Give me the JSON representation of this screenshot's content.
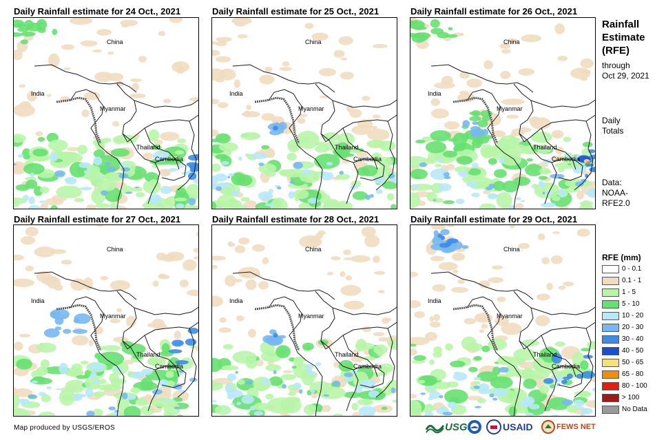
{
  "panels": [
    {
      "title": "Daily Rainfall estimate for 24 Oct., 2021",
      "rain": "heavy-south"
    },
    {
      "title": "Daily Rainfall estimate for 25 Oct., 2021",
      "rain": "moderate"
    },
    {
      "title": "Daily Rainfall estimate for 26 Oct., 2021",
      "rain": "east-heavy"
    },
    {
      "title": "Daily Rainfall estimate for 27 Oct., 2021",
      "rain": "west-heavy"
    },
    {
      "title": "Daily Rainfall estimate for 28 Oct., 2021",
      "rain": "moderate"
    },
    {
      "title": "Daily Rainfall estimate for 29 Oct., 2021",
      "rain": "north-west"
    }
  ],
  "place_labels": {
    "china": "China",
    "india": "India",
    "myanmar": "Myanmar",
    "thailand": "Thailand",
    "cambodia": "Cambodia"
  },
  "side": {
    "title_line1": "Rainfall",
    "title_line2": "Estimate",
    "title_line3": "(RFE)",
    "through": "through",
    "date": "Oct 29, 2021",
    "daily1": "Daily",
    "daily2": "Totals",
    "data1": "Data:",
    "data2": "NOAA-",
    "data3": "RFE2.0"
  },
  "legend": {
    "title": "RFE (mm)",
    "items": [
      {
        "label": "0 - 0.1",
        "color": "#ffffff"
      },
      {
        "label": "0.1 - 1",
        "color": "#efdcc0"
      },
      {
        "label": "1 - 5",
        "color": "#b8f5a8"
      },
      {
        "label": "5 - 10",
        "color": "#66e070"
      },
      {
        "label": "10 - 20",
        "color": "#b8e8f8"
      },
      {
        "label": "20 - 30",
        "color": "#78b8f0"
      },
      {
        "label": "30 - 40",
        "color": "#3c8ce8"
      },
      {
        "label": "40 - 50",
        "color": "#1c4ed0"
      },
      {
        "label": "50 - 65",
        "color": "#f8e078"
      },
      {
        "label": "65 - 80",
        "color": "#f08c10"
      },
      {
        "label": "80 - 100",
        "color": "#e02010"
      },
      {
        "label": "> 100",
        "color": "#a01818"
      },
      {
        "label": "No Data",
        "color": "#9a9a9a"
      }
    ]
  },
  "credit": "Map produced by USGS/EROS",
  "logos": {
    "usgs": "USGS",
    "usaid": "USAID",
    "fewsnet": "FEWS NET"
  }
}
